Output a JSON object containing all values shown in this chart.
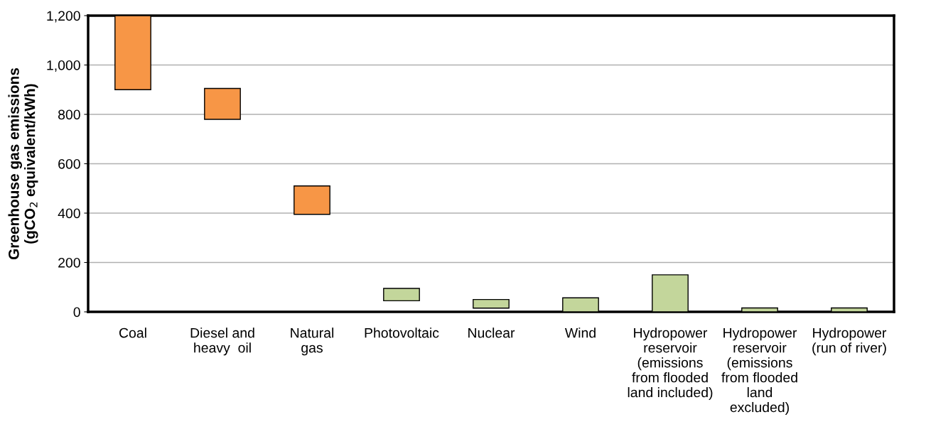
{
  "chart_data": {
    "type": "bar",
    "ylabel": "Greenhouse gas emissions\n(gCO$_{2}$ equivalent/kWh)",
    "categories": [
      "Coal",
      "Diesel and\nheavy  oil",
      "Natural\ngas",
      "Photovoltaic",
      "Nuclear",
      "Wind",
      "Hydropower\nreservoir\n(emissions\nfrom flooded\nland included)",
      "Hydropower\nreservoir\n(emissions\nfrom flooded\nland\nexcluded)",
      "Hydropower\n(run of river)"
    ],
    "base": [
      900,
      780,
      395,
      45,
      15,
      0,
      0,
      0,
      0
    ],
    "values": [
      300,
      125,
      115,
      50,
      35,
      57,
      150,
      16,
      16
    ],
    "colors": [
      "#f79646",
      "#f79646",
      "#f79646",
      "#c3d69b",
      "#c3d69b",
      "#c3d69b",
      "#c3d69b",
      "#c3d69b",
      "#c3d69b"
    ],
    "ylim": [
      0,
      1200
    ],
    "yticks": [
      {
        "value": 0,
        "label": "0"
      },
      {
        "value": 200,
        "label": "200"
      },
      {
        "value": 400,
        "label": "400"
      },
      {
        "value": 600,
        "label": "600"
      },
      {
        "value": 800,
        "label": "800"
      },
      {
        "value": 1000,
        "label": "1,000"
      },
      {
        "value": 1200,
        "label": "1,200"
      }
    ],
    "grid": "y"
  }
}
